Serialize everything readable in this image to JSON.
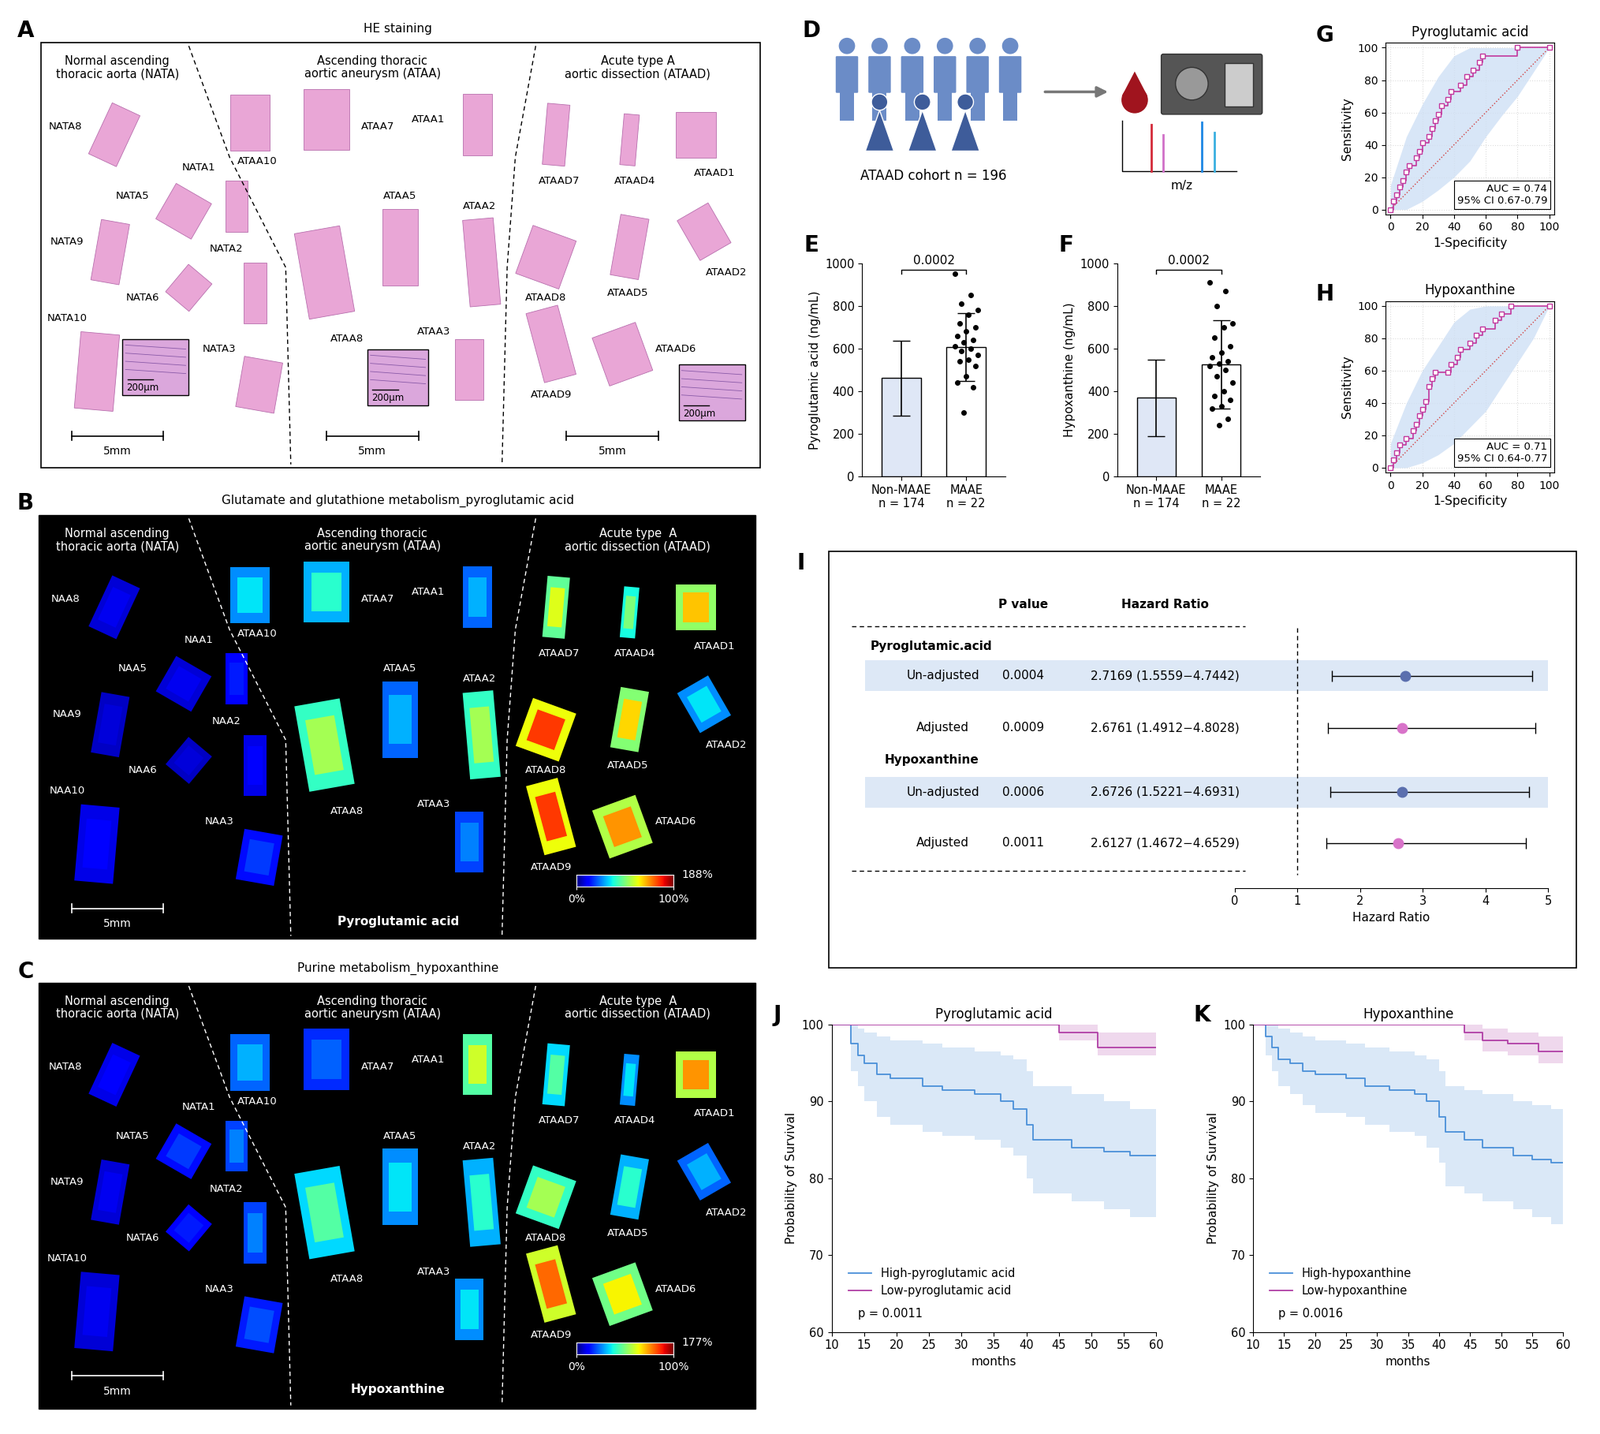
{
  "panel_letters": [
    "A",
    "B",
    "C",
    "D",
    "E",
    "F",
    "G",
    "H",
    "I",
    "J",
    "K"
  ],
  "A": {
    "title": "HE staining",
    "groups": [
      "Normal ascending\nthoracic aorta (NATA)",
      "Ascending thoracic\naortic aneurysm (ATAA)",
      "Acute type A\naortic dissection (ATAAD)"
    ],
    "samples": [
      "NATA8",
      "NATA9",
      "NATA10",
      "NATA1",
      "NATA5",
      "NATA6",
      "NATA2",
      "NATA3",
      "ATAA10",
      "ATAA7",
      "ATAA8",
      "ATAA5",
      "ATAA1",
      "ATAA2",
      "ATAA3",
      "ATAAD7",
      "ATAAD4",
      "ATAAD1",
      "ATAAD8",
      "ATAAD5",
      "ATAAD2",
      "ATAAD9",
      "ATAAD6"
    ],
    "inset_scale_labels": [
      "200μm",
      "200μm",
      "200μm"
    ],
    "scale_bars": [
      "5mm",
      "5mm",
      "5mm"
    ]
  },
  "B": {
    "title": "Glutamate and glutathione metabolism_pyroglutamic acid",
    "groups": [
      "Normal ascending\nthoracic aorta (NATA)",
      "Ascending thoracic\naortic aneurysm (ATAA)",
      "Acute type  A\naortic dissection (ATAAD)"
    ],
    "samples": [
      {
        "name": "NAA8",
        "intensity": 10
      },
      {
        "name": "NAA9",
        "intensity": 8
      },
      {
        "name": "NAA10",
        "intensity": 12
      },
      {
        "name": "NAA1",
        "intensity": 15
      },
      {
        "name": "NAA5",
        "intensity": 10
      },
      {
        "name": "NAA6",
        "intensity": 8
      },
      {
        "name": "NAA2",
        "intensity": 12
      },
      {
        "name": "NAA3",
        "intensity": 18
      },
      {
        "name": "ATAA10",
        "intensity": 35
      },
      {
        "name": "ATAA7",
        "intensity": 40
      },
      {
        "name": "ATAA8",
        "intensity": 55
      },
      {
        "name": "ATAA5",
        "intensity": 30
      },
      {
        "name": "ATAA1",
        "intensity": 30
      },
      {
        "name": "ATAA2",
        "intensity": 55
      },
      {
        "name": "ATAA3",
        "intensity": 25
      },
      {
        "name": "ATAAD7",
        "intensity": 62
      },
      {
        "name": "ATAAD4",
        "intensity": 50
      },
      {
        "name": "ATAAD1",
        "intensity": 70
      },
      {
        "name": "ATAAD8",
        "intensity": 85
      },
      {
        "name": "ATAAD5",
        "intensity": 68
      },
      {
        "name": "ATAAD2",
        "intensity": 35
      },
      {
        "name": "ATAAD9",
        "intensity": 85
      },
      {
        "name": "ATAAD6",
        "intensity": 75
      }
    ],
    "scale_bars": [
      "5mm"
    ],
    "compound": "Pyroglutamic acid",
    "colorbar": {
      "range": [
        0,
        100
      ],
      "ticks": [
        {
          "value": 0,
          "label": "0%"
        },
        {
          "value": 100,
          "label": "100%"
        }
      ],
      "max_label": "188%"
    }
  },
  "C": {
    "title": "Purine metabolism_hypoxanthine",
    "groups": [
      "Normal ascending\nthoracic aorta (NATA)",
      "Ascending thoracic\naortic aneurysm (ATAA)",
      "Acute type  A\naortic dissection (ATAAD)"
    ],
    "samples": [
      {
        "name": "NATA8",
        "intensity": 12
      },
      {
        "name": "NATA9",
        "intensity": 10
      },
      {
        "name": "NATA10",
        "intensity": 10
      },
      {
        "name": "NATA1",
        "intensity": 25
      },
      {
        "name": "NATA5",
        "intensity": 18
      },
      {
        "name": "NATA6",
        "intensity": 15
      },
      {
        "name": "NATA2",
        "intensity": 25
      },
      {
        "name": "NAA3",
        "intensity": 20
      },
      {
        "name": "ATAA10",
        "intensity": 30
      },
      {
        "name": "ATAA7",
        "intensity": 22
      },
      {
        "name": "ATAA8",
        "intensity": 45
      },
      {
        "name": "ATAA5",
        "intensity": 35
      },
      {
        "name": "ATAA1",
        "intensity": 60
      },
      {
        "name": "ATAA2",
        "intensity": 40
      },
      {
        "name": "ATAA3",
        "intensity": 35
      },
      {
        "name": "ATAAD7",
        "intensity": 45
      },
      {
        "name": "ATAAD4",
        "intensity": 35
      },
      {
        "name": "ATAAD1",
        "intensity": 75
      },
      {
        "name": "ATAAD8",
        "intensity": 55
      },
      {
        "name": "ATAAD5",
        "intensity": 40
      },
      {
        "name": "ATAAD2",
        "intensity": 30
      },
      {
        "name": "ATAAD9",
        "intensity": 80
      },
      {
        "name": "ATAAD6",
        "intensity": 65
      }
    ],
    "scale_bars": [
      "5mm"
    ],
    "compound": "Hypoxanthine",
    "colorbar": {
      "range": [
        0,
        100
      ],
      "ticks": [
        {
          "value": 0,
          "label": "0%"
        },
        {
          "value": 100,
          "label": "100%"
        }
      ],
      "max_label": "177%"
    }
  },
  "D": {
    "cohort_label": "ATAAD cohort n = 196",
    "spectrum_axis": "m/z"
  },
  "chart_data": [
    {
      "type": "bar",
      "y_label": "Pyroglutamic acid (ng/mL)",
      "categories": [
        "Non-MAAE\nn = 174",
        "MAAE\nn = 22"
      ],
      "values": [
        462,
        608
      ],
      "error": [
        175,
        158
      ],
      "colors": [
        "#dfe7f6",
        "#ffffff"
      ],
      "points": [
        null,
        [
          950,
          850,
          810,
          780,
          760,
          720,
          700,
          680,
          660,
          640,
          630,
          610,
          600,
          590,
          570,
          550,
          540,
          520,
          470,
          440,
          420,
          300
        ]
      ],
      "significance": "0.0002",
      "ylim": [
        0,
        1000
      ],
      "yticks": [
        0,
        200,
        400,
        600,
        800,
        1000
      ]
    },
    {
      "type": "bar",
      "y_label": "Hypoxanthine (ng/mL)",
      "categories": [
        "Non-MAAE\nn = 174",
        "MAAE\nn = 22"
      ],
      "values": [
        370,
        525
      ],
      "error": [
        180,
        207
      ],
      "colors": [
        "#dfe7f6",
        "#ffffff"
      ],
      "points": [
        null,
        [
          910,
          870,
          800,
          720,
          700,
          650,
          610,
          580,
          560,
          540,
          530,
          520,
          500,
          470,
          440,
          400,
          380,
          360,
          330,
          320,
          270,
          240
        ]
      ],
      "significance": "0.0002",
      "ylim": [
        0,
        1000
      ],
      "yticks": [
        0,
        200,
        400,
        600,
        800,
        1000
      ]
    },
    {
      "type": "roc",
      "title": "Pyroglutamic acid",
      "x_label": "1-Specificity",
      "y_label": "Sensitivity",
      "x": [
        0,
        2,
        4,
        6,
        8,
        10,
        12,
        16,
        18,
        20,
        24,
        26,
        28,
        30,
        32,
        36,
        38,
        44,
        48,
        52,
        56,
        58,
        80,
        100
      ],
      "y": [
        0,
        5,
        9,
        14,
        18,
        23,
        27,
        32,
        36,
        41,
        45,
        50,
        55,
        59,
        64,
        68,
        73,
        77,
        82,
        86,
        91,
        95,
        100,
        100
      ],
      "ci_x": [
        0,
        10,
        20,
        30,
        40,
        50,
        60,
        70,
        80,
        90,
        100
      ],
      "ci_lower": [
        0,
        0,
        5,
        12,
        20,
        30,
        45,
        58,
        70,
        85,
        100
      ],
      "ci_upper": [
        15,
        45,
        65,
        82,
        95,
        100,
        100,
        100,
        100,
        100,
        100
      ],
      "annotation": "AUC = 0.74\n95% CI 0.67-0.79",
      "color": "#c2389e",
      "marker": "square",
      "xlim": [
        -3,
        103
      ],
      "ylim": [
        -3,
        103
      ],
      "xticks": [
        0,
        20,
        40,
        60,
        80,
        100
      ],
      "yticks": [
        0,
        20,
        40,
        60,
        80,
        100
      ],
      "grid": true
    },
    {
      "type": "roc",
      "title": "Hypoxanthine",
      "x_label": "1-Specificity",
      "y_label": "Sensitivity",
      "x": [
        0,
        2,
        4,
        6,
        10,
        14,
        16,
        18,
        20,
        22,
        24,
        26,
        28,
        36,
        38,
        42,
        44,
        50,
        54,
        58,
        66,
        70,
        76,
        100
      ],
      "y": [
        0,
        5,
        9,
        14,
        18,
        23,
        27,
        32,
        36,
        41,
        50,
        55,
        59,
        59,
        64,
        68,
        73,
        77,
        82,
        86,
        91,
        95,
        100,
        100
      ],
      "ci_x": [
        0,
        10,
        20,
        30,
        40,
        50,
        60,
        70,
        80,
        90,
        100
      ],
      "ci_lower": [
        0,
        0,
        3,
        8,
        15,
        25,
        35,
        50,
        65,
        80,
        100
      ],
      "ci_upper": [
        15,
        40,
        60,
        75,
        90,
        98,
        100,
        100,
        100,
        100,
        100
      ],
      "annotation": "AUC = 0.71\n95% CI 0.64-0.77",
      "color": "#c2389e",
      "marker": "square",
      "xlim": [
        -3,
        103
      ],
      "ylim": [
        -3,
        103
      ],
      "xticks": [
        0,
        20,
        40,
        60,
        80,
        100
      ],
      "yticks": [
        0,
        20,
        40,
        60,
        80,
        100
      ],
      "grid": true
    },
    {
      "type": "forest",
      "headers": [
        "P value",
        "Hazard Ratio"
      ],
      "groups": [
        {
          "name": "Pyroglutamic.acid",
          "rows": [
            {
              "label": "Un-adjusted",
              "p": "0.0004",
              "hr_text": "2.7169 (1.5559−4.7442)",
              "hr": 2.7169,
              "lower": 1.5559,
              "upper": 4.7442,
              "color": "#5b6fae"
            },
            {
              "label": "Adjusted",
              "p": "0.0009",
              "hr_text": "2.6761 (1.4912−4.8028)",
              "hr": 2.6761,
              "lower": 1.4912,
              "upper": 4.8028,
              "color": "#d873c9"
            }
          ]
        },
        {
          "name": "Hypoxanthine",
          "rows": [
            {
              "label": "Un-adjusted",
              "p": "0.0006",
              "hr_text": "2.6726 (1.5221−4.6931)",
              "hr": 2.6726,
              "lower": 1.5221,
              "upper": 4.6931,
              "color": "#5b6fae"
            },
            {
              "label": "Adjusted",
              "p": "0.0011",
              "hr_text": "2.6127 (1.4672−4.6529)",
              "hr": 2.6127,
              "lower": 1.4672,
              "upper": 4.6529,
              "color": "#d873c9"
            }
          ]
        }
      ],
      "x_label": "Hazard Ratio",
      "xlim": [
        0,
        5
      ],
      "xticks": [
        0,
        1,
        2,
        3,
        4,
        5
      ],
      "reference": 1
    },
    {
      "type": "km",
      "title": "Pyroglutamic acid",
      "x_label": "months",
      "y_label": "Probability of Survival",
      "annotation": "p = 0.0011",
      "legend": "lower left",
      "series": [
        {
          "name": "High-pyroglutamic acid",
          "color": "#4a90d9",
          "x": [
            10,
            13,
            14,
            15,
            17,
            19,
            24,
            27,
            32,
            36,
            38,
            40,
            41,
            47,
            52,
            56,
            60
          ],
          "values": [
            100,
            97.5,
            96,
            95,
            93.5,
            93,
            92,
            91.5,
            91,
            90,
            89,
            87,
            85,
            84,
            83.5,
            83,
            83
          ],
          "ci_lower": [
            100,
            94,
            92,
            90,
            88,
            87,
            86,
            85.5,
            85,
            84,
            83,
            80,
            78,
            77,
            76,
            75,
            74
          ],
          "ci_upper": [
            100,
            100,
            99.5,
            99,
            98.5,
            98,
            97.5,
            97,
            96.5,
            96,
            95.5,
            94,
            92,
            91,
            90,
            89,
            88.5
          ]
        },
        {
          "name": "Low-pyroglutamic acid",
          "color": "#b03fa5",
          "x": [
            10,
            45,
            51,
            60
          ],
          "values": [
            100,
            99,
            97,
            97
          ],
          "ci_lower": [
            100,
            98,
            96,
            96
          ],
          "ci_upper": [
            100,
            100,
            99,
            99
          ]
        }
      ],
      "xlim": [
        10,
        60
      ],
      "xticks": [
        10,
        15,
        20,
        25,
        30,
        35,
        40,
        45,
        50,
        55,
        60
      ],
      "ylim": [
        60,
        100
      ],
      "yticks": [
        60,
        70,
        80,
        90,
        100
      ]
    },
    {
      "type": "km",
      "title": "Hypoxanthine",
      "x_label": "months",
      "y_label": "Probability of Survival",
      "annotation": "p = 0.0016",
      "legend": "lower left",
      "series": [
        {
          "name": "High-hypoxanthine",
          "color": "#4a90d9",
          "x": [
            10,
            12,
            13,
            14,
            16,
            18,
            20,
            25,
            28,
            32,
            36,
            38,
            40,
            41,
            44,
            47,
            52,
            55,
            58,
            60
          ],
          "values": [
            100,
            98.5,
            97,
            95.5,
            95,
            94,
            93.5,
            93,
            92,
            91.5,
            91,
            90,
            88,
            86,
            85,
            84,
            83,
            82.5,
            82,
            82
          ],
          "ci_lower": [
            100,
            96,
            94,
            92,
            91,
            89.5,
            88.5,
            88,
            87,
            86,
            85.5,
            84,
            82,
            79,
            78,
            77,
            76,
            75,
            74,
            73
          ],
          "ci_upper": [
            100,
            100,
            100,
            99.5,
            99,
            98.5,
            98,
            97.5,
            97,
            96.5,
            96,
            95.5,
            94,
            92,
            91.5,
            91,
            90,
            89.5,
            89,
            88.5
          ]
        },
        {
          "name": "Low-hypoxanthine",
          "color": "#b03fa5",
          "x": [
            10,
            44,
            47,
            51,
            56,
            60
          ],
          "values": [
            100,
            99,
            98,
            97.5,
            96.5,
            96.5
          ],
          "ci_lower": [
            100,
            98,
            96.5,
            96,
            95,
            95
          ],
          "ci_upper": [
            100,
            100,
            99.5,
            99,
            98.5,
            98.5
          ]
        }
      ],
      "xlim": [
        10,
        60
      ],
      "xticks": [
        10,
        15,
        20,
        25,
        30,
        35,
        40,
        45,
        50,
        55,
        60
      ],
      "ylim": [
        60,
        100
      ],
      "yticks": [
        60,
        70,
        80,
        90,
        100
      ]
    }
  ]
}
